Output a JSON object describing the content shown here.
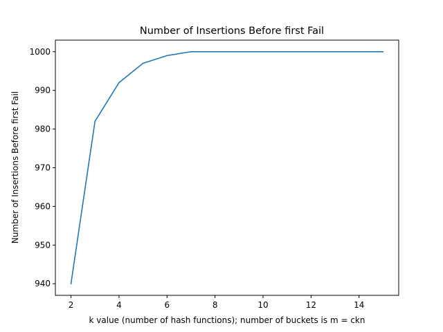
{
  "chart_data": {
    "type": "line",
    "title": "Number of Insertions Before first Fail",
    "xlabel": "k value (number of hash functions); number of buckets is m = ckn",
    "ylabel": "Number of Insertions Before first Fail",
    "xlim": [
      1.35,
      15.65
    ],
    "ylim": [
      937,
      1003
    ],
    "x_ticks": [
      2,
      4,
      6,
      8,
      10,
      12,
      14
    ],
    "y_ticks": [
      940,
      950,
      960,
      970,
      980,
      990,
      1000
    ],
    "grid": false,
    "series": [
      {
        "color": "#1f77b4",
        "x": [
          2,
          3,
          4,
          5,
          6,
          7,
          8,
          9,
          10,
          11,
          12,
          13,
          14,
          15
        ],
        "y": [
          940,
          982,
          992,
          997,
          999,
          1000,
          1000,
          1000,
          1000,
          1000,
          1000,
          1000,
          1000,
          1000
        ]
      }
    ]
  }
}
